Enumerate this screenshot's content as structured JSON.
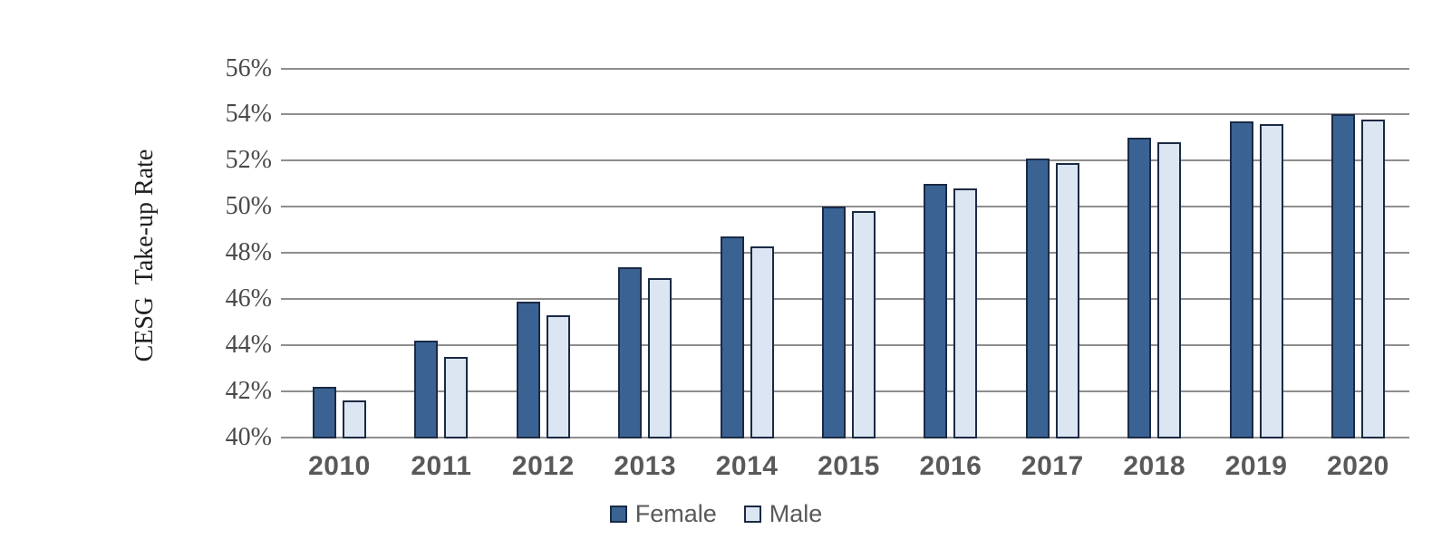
{
  "chart_data": {
    "type": "bar",
    "title": "",
    "xlabel": "",
    "ylabel": "CESG  Take-up Rate",
    "categories": [
      "2010",
      "2011",
      "2012",
      "2013",
      "2014",
      "2015",
      "2016",
      "2017",
      "2018",
      "2019",
      "2020"
    ],
    "series": [
      {
        "name": "Female",
        "color": "#3A6394",
        "values": [
          42.2,
          44.2,
          45.9,
          47.4,
          48.7,
          50.0,
          51.0,
          52.1,
          53.0,
          53.7,
          54.0
        ]
      },
      {
        "name": "Male",
        "color": "#DCE6F2",
        "values": [
          41.6,
          43.5,
          45.3,
          46.9,
          48.3,
          49.8,
          50.8,
          51.9,
          52.8,
          53.6,
          53.8
        ]
      }
    ],
    "ylim": [
      40,
      56
    ],
    "ytick_step": 2,
    "ytick_labels": [
      "40%",
      "42%",
      "44%",
      "46%",
      "48%",
      "50%",
      "52%",
      "54%",
      "56%"
    ],
    "grid": "horizontal-only",
    "legend_position": "bottom-center",
    "colors": {
      "bar_border": "#1B2A44",
      "gridline": "#8E8E8E",
      "ytick_text": "#4A4A4A",
      "xtick_text": "#595959",
      "legend_text": "#595959",
      "background": "#FFFFFF"
    }
  }
}
